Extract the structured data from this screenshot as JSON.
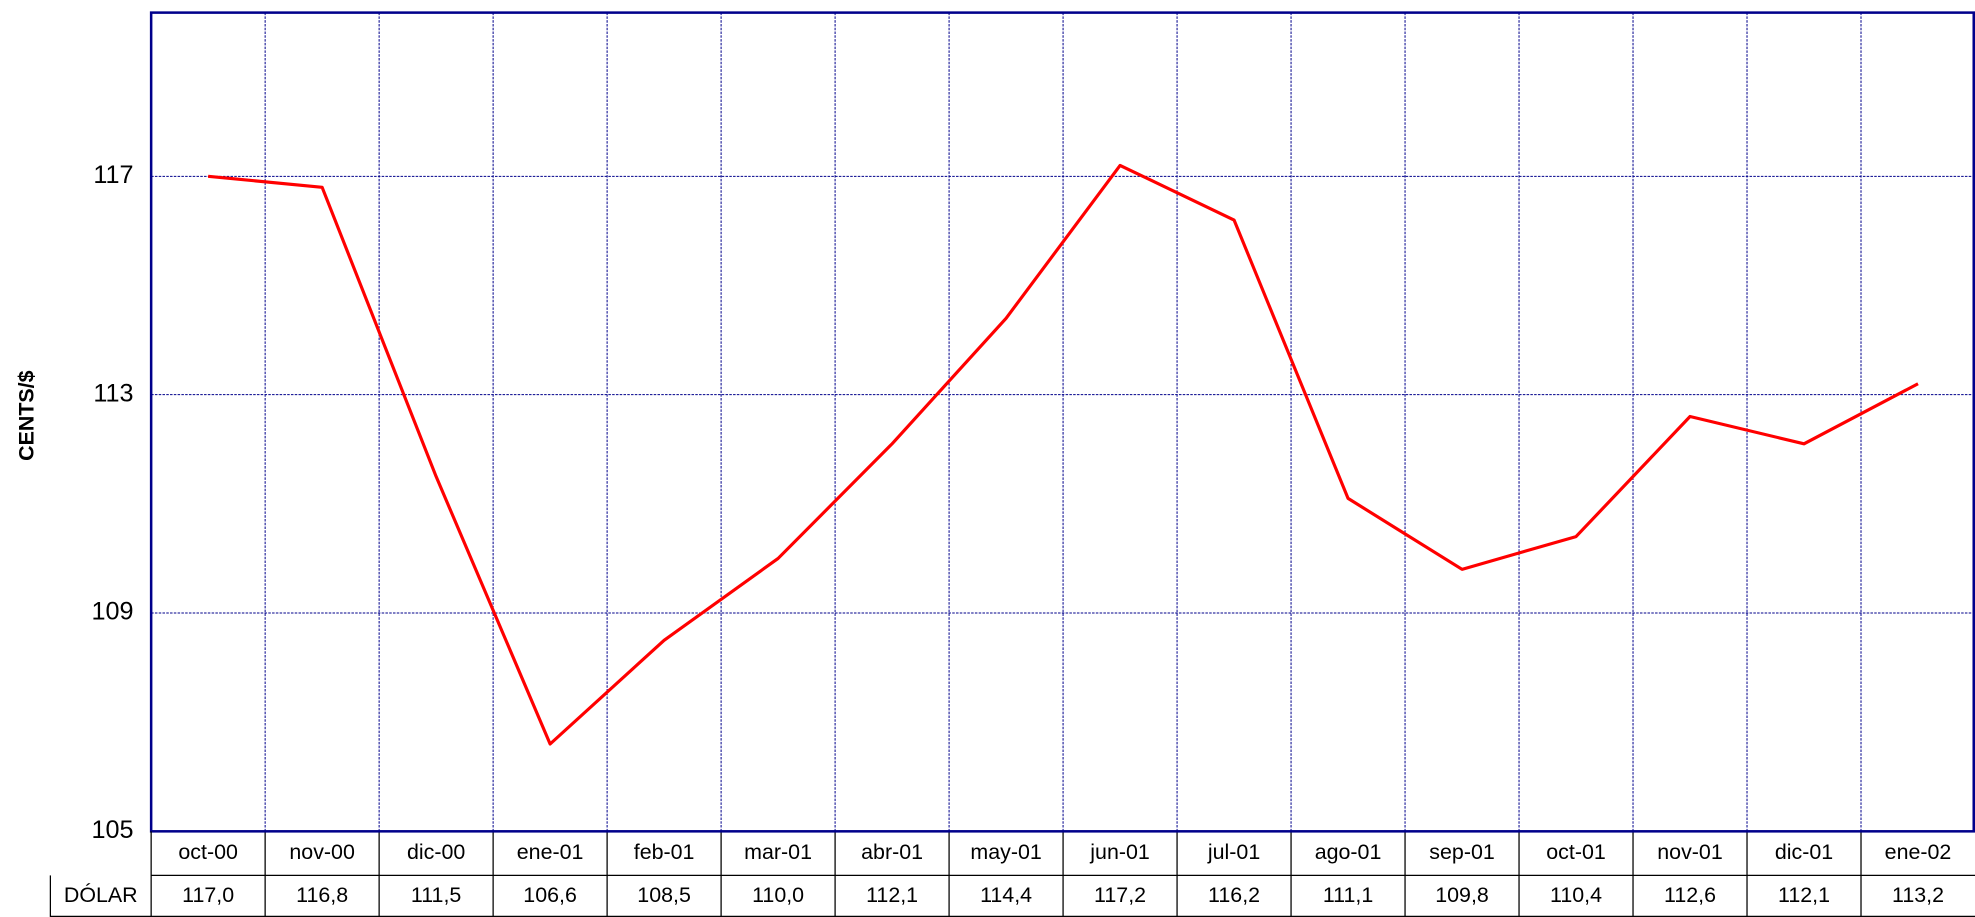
{
  "chart_data": {
    "type": "line",
    "ylabel": "CENTS/$",
    "categories": [
      "oct-00",
      "nov-00",
      "dic-00",
      "ene-01",
      "feb-01",
      "mar-01",
      "abr-01",
      "may-01",
      "jun-01",
      "jul-01",
      "ago-01",
      "sep-01",
      "oct-01",
      "nov-01",
      "dic-01",
      "ene-02"
    ],
    "series": [
      {
        "name": "DÓLAR",
        "color": "#ff0000",
        "values": [
          117.0,
          116.8,
          111.5,
          106.6,
          108.5,
          110.0,
          112.1,
          114.4,
          117.2,
          116.2,
          111.1,
          109.8,
          110.4,
          112.6,
          112.1,
          113.2
        ],
        "value_labels": [
          "117,0",
          "116,8",
          "111,5",
          "106,6",
          "108,5",
          "110,0",
          "112,1",
          "114,4",
          "117,2",
          "116,2",
          "111,1",
          "109,8",
          "110,4",
          "112,6",
          "112,1",
          "113,2"
        ]
      }
    ],
    "ylim": [
      105,
      120
    ],
    "yticks": [
      105,
      109,
      113,
      117
    ],
    "grid": true
  }
}
